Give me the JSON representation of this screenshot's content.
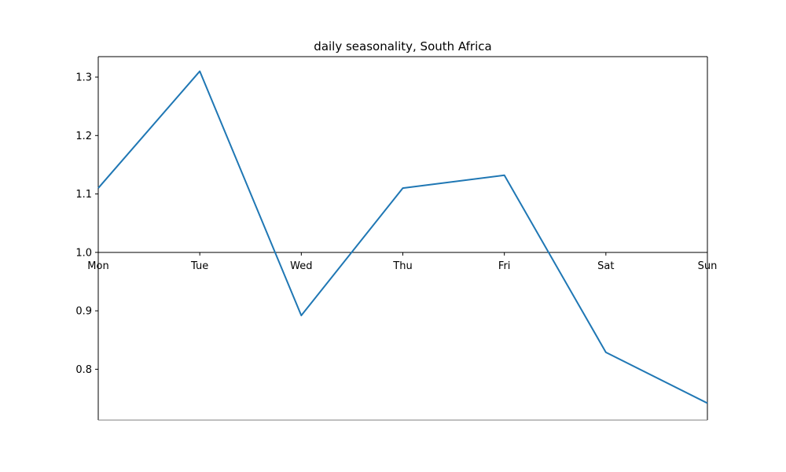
{
  "chart_data": {
    "type": "line",
    "title": "daily seasonality, South Africa",
    "xlabel": "",
    "ylabel": "",
    "categories": [
      "Mon",
      "Tue",
      "Wed",
      "Thu",
      "Fri",
      "Sat",
      "Sun"
    ],
    "series": [
      {
        "values": [
          1.11,
          1.31,
          0.892,
          1.11,
          1.132,
          0.829,
          0.742
        ],
        "color": "#1f77b4"
      }
    ],
    "ylim": [
      0.713,
      1.335
    ],
    "yticks": [
      "0.8",
      "0.9",
      "1.0",
      "1.1",
      "1.2",
      "1.3"
    ],
    "x_axis_crosses_at": 1.0,
    "grid": false,
    "legend": "none"
  }
}
